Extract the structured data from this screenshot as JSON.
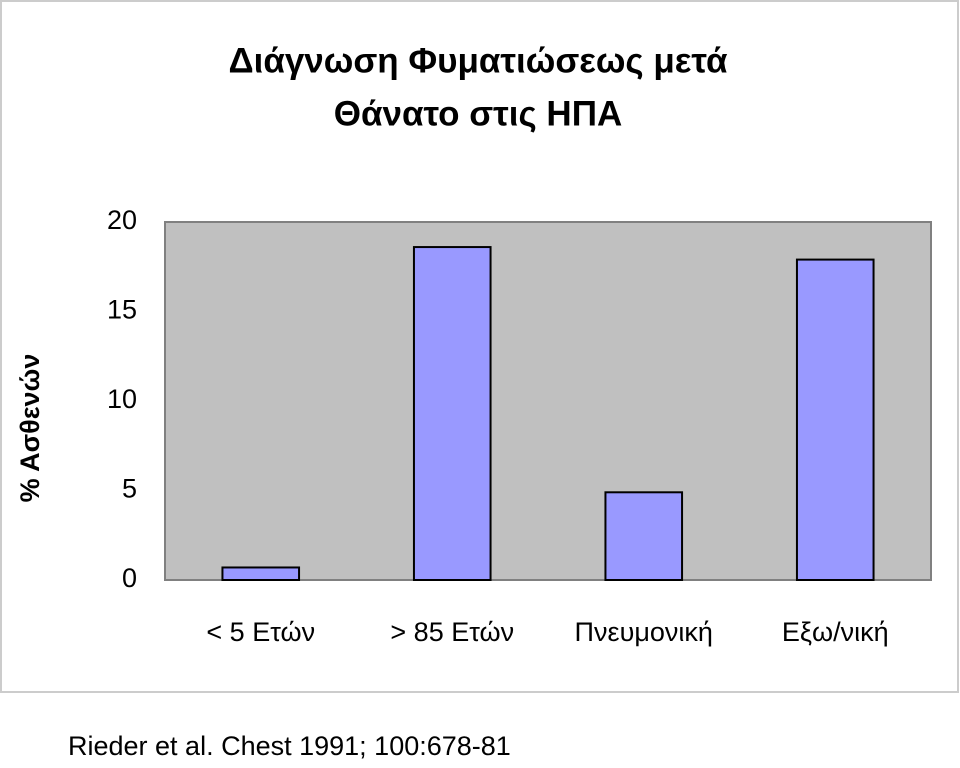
{
  "chart_data": {
    "type": "bar",
    "title": [
      "Διάγνωση Φυματιώσεως μετά",
      "Θάνατο στις ΗΠΑ"
    ],
    "ylabel": "% Ασθενών",
    "categories": [
      "< 5 Ετών",
      "> 85 Ετών",
      "Πνευμονική",
      "Εξω/νική"
    ],
    "values": [
      0.7,
      18.6,
      4.9,
      17.9
    ],
    "color": "#9999ff",
    "ylim": [
      0,
      20
    ],
    "yticks": [
      0,
      5,
      10,
      15,
      20
    ],
    "grid": false,
    "source": "Rieder et al. Chest 1991; 100:678-81"
  }
}
